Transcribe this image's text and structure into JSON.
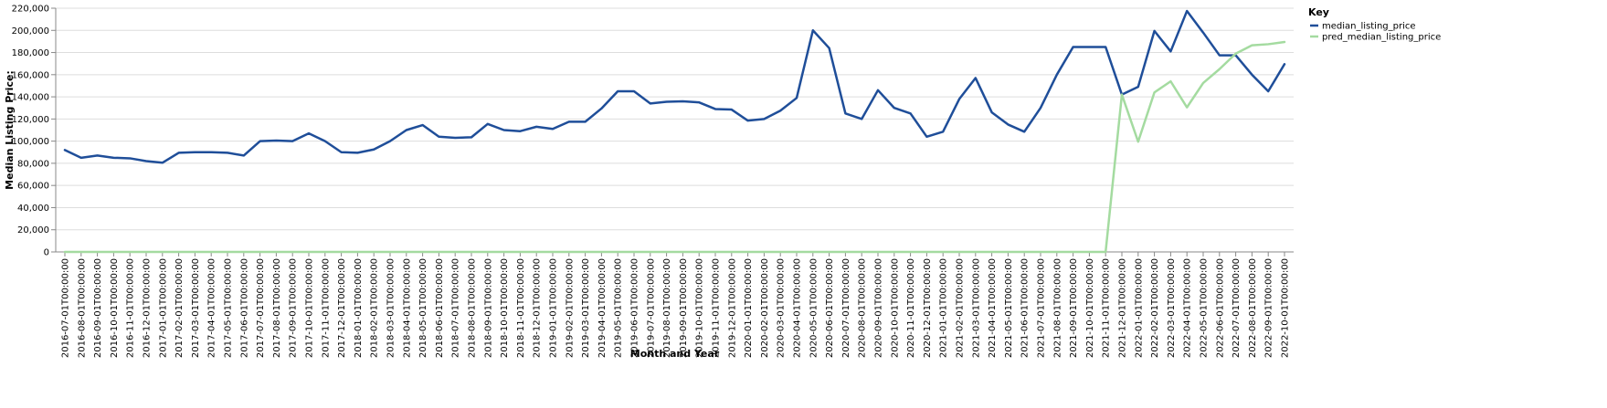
{
  "chart_data": {
    "type": "line",
    "xlabel": "Month and Year",
    "ylabel": "Median Listing Price:",
    "ylim": [
      0,
      220000
    ],
    "yticks": [
      0,
      20000,
      40000,
      60000,
      80000,
      100000,
      120000,
      140000,
      160000,
      180000,
      200000,
      220000
    ],
    "ytick_labels": [
      "0",
      "20,000",
      "40,000",
      "60,000",
      "80,000",
      "100,000",
      "120,000",
      "140,000",
      "160,000",
      "180,000",
      "200,000",
      "220,000"
    ],
    "grid": "horizontal",
    "legend_position": "top-right",
    "legend_title": "Key",
    "x": [
      "2016-07-01T00:00:00",
      "2016-08-01T00:00:00",
      "2016-09-01T00:00:00",
      "2016-10-01T00:00:00",
      "2016-11-01T00:00:00",
      "2016-12-01T00:00:00",
      "2017-01-01T00:00:00",
      "2017-02-01T00:00:00",
      "2017-03-01T00:00:00",
      "2017-04-01T00:00:00",
      "2017-05-01T00:00:00",
      "2017-06-01T00:00:00",
      "2017-07-01T00:00:00",
      "2017-08-01T00:00:00",
      "2017-09-01T00:00:00",
      "2017-10-01T00:00:00",
      "2017-11-01T00:00:00",
      "2017-12-01T00:00:00",
      "2018-01-01T00:00:00",
      "2018-02-01T00:00:00",
      "2018-03-01T00:00:00",
      "2018-04-01T00:00:00",
      "2018-05-01T00:00:00",
      "2018-06-01T00:00:00",
      "2018-07-01T00:00:00",
      "2018-08-01T00:00:00",
      "2018-09-01T00:00:00",
      "2018-10-01T00:00:00",
      "2018-11-01T00:00:00",
      "2018-12-01T00:00:00",
      "2019-01-01T00:00:00",
      "2019-02-01T00:00:00",
      "2019-03-01T00:00:00",
      "2019-04-01T00:00:00",
      "2019-05-01T00:00:00",
      "2019-06-01T00:00:00",
      "2019-07-01T00:00:00",
      "2019-08-01T00:00:00",
      "2019-09-01T00:00:00",
      "2019-10-01T00:00:00",
      "2019-11-01T00:00:00",
      "2019-12-01T00:00:00",
      "2020-01-01T00:00:00",
      "2020-02-01T00:00:00",
      "2020-03-01T00:00:00",
      "2020-04-01T00:00:00",
      "2020-05-01T00:00:00",
      "2020-06-01T00:00:00",
      "2020-07-01T00:00:00",
      "2020-08-01T00:00:00",
      "2020-09-01T00:00:00",
      "2020-10-01T00:00:00",
      "2020-11-01T00:00:00",
      "2020-12-01T00:00:00",
      "2021-01-01T00:00:00",
      "2021-02-01T00:00:00",
      "2021-03-01T00:00:00",
      "2021-04-01T00:00:00",
      "2021-05-01T00:00:00",
      "2021-06-01T00:00:00",
      "2021-07-01T00:00:00",
      "2021-08-01T00:00:00",
      "2021-09-01T00:00:00",
      "2021-10-01T00:00:00",
      "2021-11-01T00:00:00",
      "2021-12-01T00:00:00",
      "2022-01-01T00:00:00",
      "2022-02-01T00:00:00",
      "2022-03-01T00:00:00",
      "2022-04-01T00:00:00",
      "2022-05-01T00:00:00",
      "2022-06-01T00:00:00",
      "2022-07-01T00:00:00",
      "2022-08-01T00:00:00",
      "2022-09-01T00:00:00",
      "2022-10-01T00:00:00"
    ],
    "series": [
      {
        "name": "median_listing_price",
        "color": "#1f4e99",
        "values": [
          92000,
          85000,
          87000,
          85000,
          84500,
          82000,
          80500,
          89500,
          90000,
          90000,
          89500,
          87000,
          100000,
          100500,
          100000,
          107000,
          100000,
          90000,
          89500,
          92500,
          100000,
          110000,
          114500,
          104000,
          103000,
          103500,
          115500,
          110000,
          109000,
          113000,
          111000,
          117500,
          117500,
          129500,
          145000,
          145000,
          134000,
          135500,
          136000,
          135000,
          129000,
          128500,
          118500,
          120000,
          127500,
          139000,
          200000,
          184000,
          125000,
          120000,
          146000,
          130000,
          125000,
          104000,
          108500,
          138000,
          157000,
          126000,
          115000,
          108500,
          130000,
          160000,
          185000,
          185000,
          185000,
          142000,
          149000,
          199500,
          181000,
          217500,
          198000,
          177500,
          177500,
          160000,
          145000,
          169500
        ]
      },
      {
        "name": "pred_median_listing_price",
        "color": "#a4dba0",
        "values": [
          0,
          0,
          0,
          0,
          0,
          0,
          0,
          0,
          0,
          0,
          0,
          0,
          0,
          0,
          0,
          0,
          0,
          0,
          0,
          0,
          0,
          0,
          0,
          0,
          0,
          0,
          0,
          0,
          0,
          0,
          0,
          0,
          0,
          0,
          0,
          0,
          0,
          0,
          0,
          0,
          0,
          0,
          0,
          0,
          0,
          0,
          0,
          0,
          0,
          0,
          0,
          0,
          0,
          0,
          0,
          0,
          0,
          0,
          0,
          0,
          0,
          0,
          0,
          0,
          0,
          142000,
          99500,
          144000,
          154000,
          130500,
          152500,
          165000,
          179000,
          186500,
          187500,
          189500
        ]
      }
    ]
  }
}
